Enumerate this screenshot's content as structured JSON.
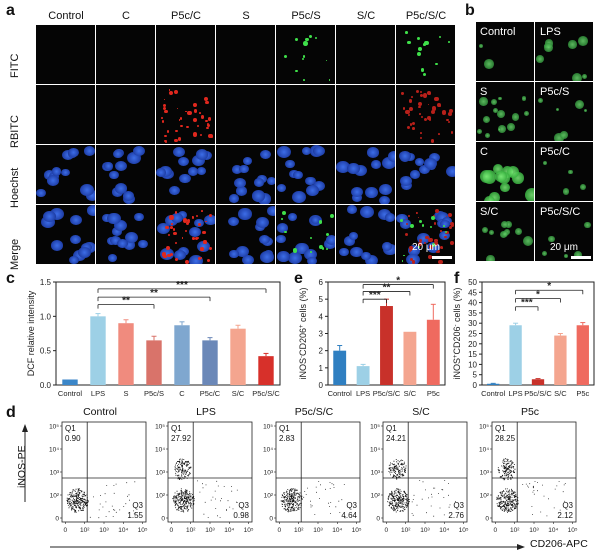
{
  "panels": {
    "a": "a",
    "b": "b",
    "c": "c",
    "d": "d",
    "e": "e",
    "f": "f"
  },
  "panel_a": {
    "columns": [
      "Control",
      "C",
      "P5c/C",
      "S",
      "P5c/S",
      "S/C",
      "P5c/S/C"
    ],
    "rows": [
      "FITC",
      "RBITC",
      "Hoechst",
      "Merge"
    ],
    "scale_label": "20 μm"
  },
  "panel_b": {
    "labels": [
      [
        "Control",
        "LPS"
      ],
      [
        "S",
        "P5c/S"
      ],
      [
        "C",
        "P5c/C"
      ],
      [
        "S/C",
        "P5c/S/C"
      ]
    ],
    "scale_label": "20 μm"
  },
  "chart_data": [
    {
      "panel": "c",
      "type": "bar",
      "ylabel": "DCF relative intensity",
      "categories": [
        "Control",
        "LPS",
        "S",
        "P5c/S",
        "C",
        "P5c/C",
        "S/C",
        "P5c/S/C"
      ],
      "values": [
        0.08,
        1.0,
        0.9,
        0.65,
        0.87,
        0.65,
        0.82,
        0.42
      ],
      "errors": [
        0.0,
        0.04,
        0.05,
        0.06,
        0.05,
        0.04,
        0.05,
        0.04
      ],
      "colors": [
        "#3a86c8",
        "#9dd0e6",
        "#f08b7e",
        "#d9736a",
        "#7fa7cf",
        "#6b88b8",
        "#f4a58f",
        "#d7302a"
      ],
      "ylim": [
        0,
        1.5
      ],
      "yticks": [
        "0.0",
        "0.5",
        "1.0",
        "1.5"
      ],
      "significance": [
        "**",
        "**",
        "***"
      ]
    },
    {
      "panel": "e",
      "type": "bar",
      "ylabel": "iNOS-CD206+ cells (%)",
      "ylabel_parts": {
        "a": "iNOS",
        "b": "-",
        "c": "CD206",
        "d": "+",
        "e": " cells (%)"
      },
      "categories": [
        "Control",
        "LPS",
        "P5c/S/C",
        "S/C",
        "P5c"
      ],
      "values": [
        2.0,
        1.1,
        4.6,
        3.1,
        3.8
      ],
      "errors": [
        0.3,
        0.1,
        0.4,
        0.0,
        0.9
      ],
      "colors": [
        "#2f7fc1",
        "#9dd0e6",
        "#c8312a",
        "#f4a58f",
        "#ef6a5f"
      ],
      "ylim": [
        0,
        6
      ],
      "yticks": [
        "0",
        "1",
        "2",
        "3",
        "4",
        "5",
        "6"
      ],
      "significance": [
        "***",
        "**",
        "*"
      ]
    },
    {
      "panel": "f",
      "type": "bar",
      "ylabel": "iNOS+CD206- cells (%)",
      "ylabel_parts": {
        "a": "iNOS",
        "b": "+",
        "c": "CD206",
        "d": "-",
        "e": " cells (%)"
      },
      "categories": [
        "Control",
        "LPS",
        "P5c/S/C",
        "S/C",
        "P5c"
      ],
      "values": [
        0.6,
        29.0,
        2.8,
        24.0,
        29.0
      ],
      "errors": [
        0.2,
        1.0,
        0.3,
        1.0,
        1.3
      ],
      "colors": [
        "#2f7fc1",
        "#9dd0e6",
        "#c8312a",
        "#f4a58f",
        "#ef6a5f"
      ],
      "ylim": [
        0,
        50
      ],
      "yticks": [
        "0",
        "5",
        "10",
        "15",
        "20",
        "25",
        "30",
        "35",
        "40",
        "45",
        "50"
      ],
      "significance": [
        "***",
        "*",
        "*"
      ]
    }
  ],
  "panel_d": {
    "yaxis": "iNOS-PE",
    "xaxis": "CD206-APC",
    "ticks_x": [
      "0",
      "10²",
      "10³",
      "10⁴",
      "10⁵"
    ],
    "ticks_y": [
      "0",
      "10²",
      "10³",
      "10⁴",
      "10⁵"
    ],
    "plots": [
      {
        "title": "Control",
        "q1": "Q1",
        "q1v": "0.90",
        "q3": "Q3",
        "q3v": "1.55"
      },
      {
        "title": "LPS",
        "q1": "Q1",
        "q1v": "27.92",
        "q3": "Q3",
        "q3v": "0.98"
      },
      {
        "title": "P5c/S/C",
        "q1": "Q1",
        "q1v": "2.83",
        "q3": "Q3",
        "q3v": "4.64"
      },
      {
        "title": "S/C",
        "q1": "Q1",
        "q1v": "24.21",
        "q3": "Q3",
        "q3v": "2.76"
      },
      {
        "title": "P5c",
        "q1": "Q1",
        "q1v": "28.25",
        "q3": "Q3",
        "q3v": "2.12"
      }
    ]
  }
}
